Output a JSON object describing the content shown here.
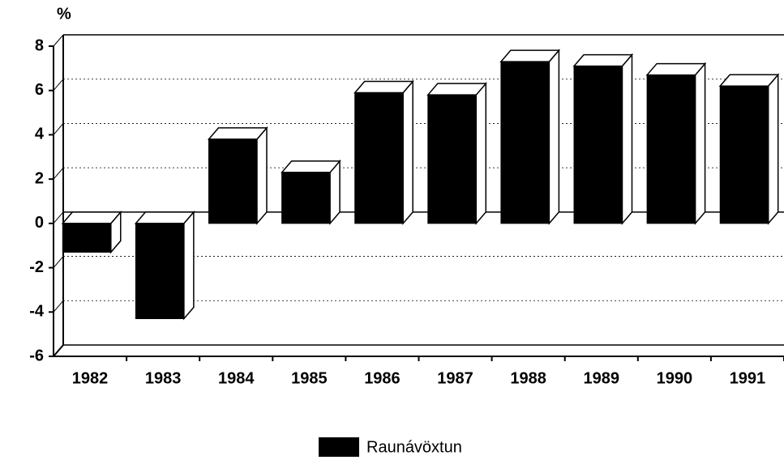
{
  "chart_data": {
    "type": "bar3d",
    "y_label": "%",
    "categories": [
      "1982",
      "1983",
      "1984",
      "1985",
      "1986",
      "1987",
      "1988",
      "1989",
      "1990",
      "1991"
    ],
    "series": [
      {
        "name": "Raunávöxtun",
        "color": "#000000",
        "values": [
          -1.3,
          -4.3,
          3.8,
          2.3,
          5.9,
          5.8,
          7.3,
          7.1,
          6.7,
          6.2
        ]
      }
    ],
    "ylim": [
      -6,
      8
    ],
    "yticks": [
      -6,
      -4,
      -2,
      0,
      2,
      4,
      6,
      8
    ],
    "grid": true
  }
}
